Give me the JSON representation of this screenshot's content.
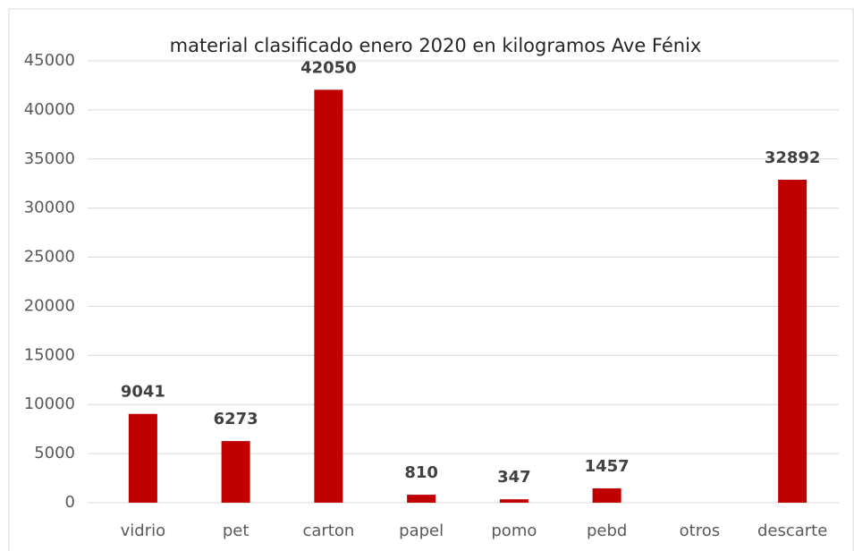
{
  "chart_data": {
    "type": "bar",
    "title": "material clasificado enero 2020 en kilogramos Ave Fénix",
    "categories": [
      "vidrio",
      "pet",
      "carton",
      "papel",
      "pomo",
      "pebd",
      "otros",
      "descarte"
    ],
    "values": [
      9041,
      6273,
      42050,
      810,
      347,
      1457,
      null,
      32892
    ],
    "color": "#c00000",
    "ylim": [
      0,
      45000
    ],
    "yticks": [
      0,
      5000,
      10000,
      15000,
      20000,
      25000,
      30000,
      35000,
      40000,
      45000
    ],
    "grid": true
  }
}
